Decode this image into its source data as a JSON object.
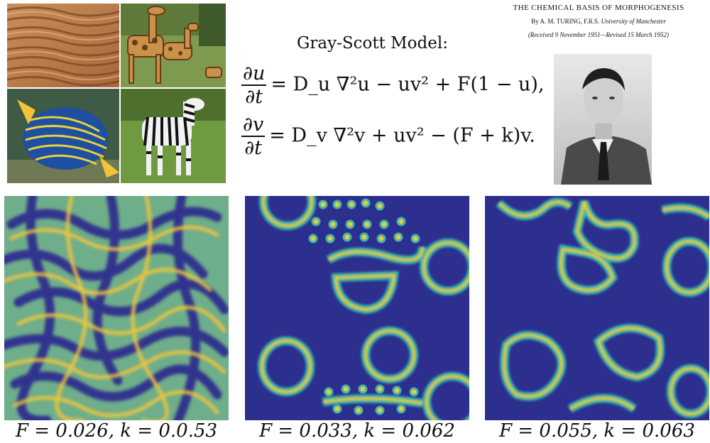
{
  "photos": {
    "items": [
      {
        "name": "sand-dunes-photo",
        "subject": "sand ripples"
      },
      {
        "name": "giraffes-photo",
        "subject": "giraffes"
      },
      {
        "name": "angelfish-photo",
        "subject": "emperor angelfish"
      },
      {
        "name": "zebra-photo",
        "subject": "zebra"
      }
    ]
  },
  "model": {
    "title": "Gray-Scott Model:",
    "eq1": {
      "lhs_num": "∂u",
      "lhs_den": "∂t",
      "rhs": "= D_u ∇²u − uv² + F(1 − u),"
    },
    "eq2": {
      "lhs_num": "∂v",
      "lhs_den": "∂t",
      "rhs": "= D_v ∇²v + uv² − (F + k)v."
    }
  },
  "paper": {
    "title": "THE CHEMICAL BASIS OF MORPHOGENESIS",
    "byline_prefix": "By A. M. TURING, F.R.S.",
    "byline_affil": "University of Manchester",
    "received": "(Received 9 November 1951—Revised 15 March 1952)"
  },
  "portrait": {
    "name": "turing-portrait"
  },
  "simulations": [
    {
      "caption": "F = 0.026, k = 0.0.53",
      "F": "0.026",
      "k": "0.0.53"
    },
    {
      "caption": "F = 0.033, k = 0.062",
      "F": "0.033",
      "k": "0.062"
    },
    {
      "caption": "F = 0.055, k = 0.063",
      "F": "0.055",
      "k": "0.063"
    }
  ],
  "colors": {
    "background": "#2d2f8e",
    "ring_outer": "#3bb6b0",
    "ring_inner": "#f4c73a",
    "mid": "#8fc46a"
  }
}
